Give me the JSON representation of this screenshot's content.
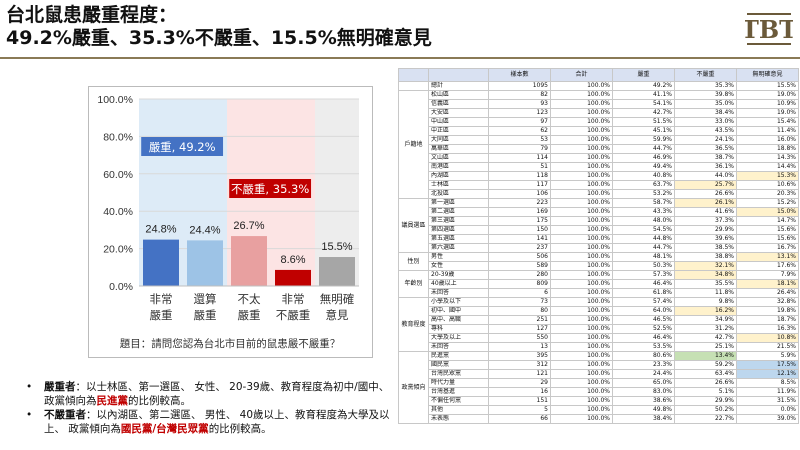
{
  "header": {
    "line1": "台北鼠患嚴重程度：",
    "line2": "49.2%嚴重、35.3%不嚴重、15.5%無明確意見",
    "logo_text": "TBT"
  },
  "colors": {
    "accent_rule": "#8a7a56",
    "blue": "#4472c4",
    "lightblue": "#9dc3e6",
    "pink": "#e8a0a0",
    "red": "#c00000",
    "gray": "#a6a6a6"
  },
  "chart_data": {
    "type": "bar",
    "categories": [
      [
        "非常",
        "嚴重"
      ],
      [
        "還算",
        "嚴重"
      ],
      [
        "不太",
        "嚴重"
      ],
      [
        "非常",
        "不嚴重"
      ],
      [
        "無明確",
        "意見"
      ]
    ],
    "values": [
      24.8,
      24.4,
      26.7,
      8.6,
      15.5
    ],
    "value_labels": [
      "24.8%",
      "24.4%",
      "26.7%",
      "8.6%",
      "15.5%"
    ],
    "bar_colors": [
      "#4472c4",
      "#9dc3e6",
      "#e8a0a0",
      "#c00000",
      "#a6a6a6"
    ],
    "y_ticks": [
      "0.0%",
      "20.0%",
      "40.0%",
      "60.0%",
      "80.0%",
      "100.0%"
    ],
    "ylim": [
      0,
      100
    ],
    "groups": [
      {
        "label": "嚴重, 49.2%",
        "from": 0,
        "to": 1,
        "bg": "#ddebf7",
        "box": "#4472c4"
      },
      {
        "label": "不嚴重, 35.3%",
        "from": 2,
        "to": 3,
        "bg": "#fce4e4",
        "box": "#c00000"
      },
      {
        "label": "",
        "from": 4,
        "to": 4,
        "bg": "#ededed",
        "box": "#a6a6a6"
      }
    ],
    "question": "題目：請問您認為台北市目前的鼠患嚴不嚴重？"
  },
  "notes": [
    {
      "heading": "嚴重者",
      "sep": "：",
      "text": "以士林區、第一選區、 女性、 20-39歲、教育程度為初中/國中、 政黨傾向為",
      "highlight": "民進黨",
      "tail": "的比例較高。"
    },
    {
      "heading": "不嚴重者",
      "sep": "：",
      "text": "以內湖區、第二選區、 男性、 40歲以上、教育程度為大學及以上、 政黨傾向為",
      "highlight": "國民黨/台灣民眾黨",
      "tail": "的比例較高。"
    }
  ],
  "table": {
    "headers": [
      "",
      "",
      "樣本數",
      "合計",
      "嚴重",
      "不嚴重",
      "無明確意見"
    ],
    "total": {
      "label": "總計",
      "values": [
        "1095",
        "100.0%",
        "49.2%",
        "35.3%",
        "15.5%"
      ]
    },
    "groups": [
      {
        "name": "戶籍地",
        "rows": [
          [
            "松山區",
            "82",
            "100.0%",
            "41.1%",
            "39.8%",
            "19.0%"
          ],
          [
            "信義區",
            "93",
            "100.0%",
            "54.1%",
            "35.0%",
            "10.9%"
          ],
          [
            "大安區",
            "123",
            "100.0%",
            "42.7%",
            "38.4%",
            "19.0%"
          ],
          [
            "中山區",
            "97",
            "100.0%",
            "51.5%",
            "33.0%",
            "15.4%"
          ],
          [
            "中正區",
            "62",
            "100.0%",
            "45.1%",
            "43.5%",
            "11.4%"
          ],
          [
            "大同區",
            "53",
            "100.0%",
            "59.9%",
            "24.1%",
            "16.0%"
          ],
          [
            "萬華區",
            "79",
            "100.0%",
            "44.7%",
            "36.5%",
            "18.8%"
          ],
          [
            "文山區",
            "114",
            "100.0%",
            "46.9%",
            "38.7%",
            "14.3%"
          ],
          [
            "南港區",
            "51",
            "100.0%",
            "49.4%",
            "36.1%",
            "14.4%"
          ],
          [
            "內湖區",
            "118",
            "100.0%",
            "40.8%",
            "44.0%",
            "15.3%"
          ],
          [
            "士林區",
            "117",
            "100.0%",
            "63.7%",
            "25.7%",
            "10.6%"
          ],
          [
            "北投區",
            "106",
            "100.0%",
            "53.2%",
            "26.6%",
            "20.3%"
          ]
        ]
      },
      {
        "name": "議員選區",
        "rows": [
          [
            "第一選區",
            "223",
            "100.0%",
            "58.7%",
            "26.1%",
            "15.2%"
          ],
          [
            "第二選區",
            "169",
            "100.0%",
            "43.3%",
            "41.6%",
            "15.0%"
          ],
          [
            "第三選區",
            "175",
            "100.0%",
            "48.0%",
            "37.3%",
            "14.7%"
          ],
          [
            "第四選區",
            "150",
            "100.0%",
            "54.5%",
            "29.9%",
            "15.6%"
          ],
          [
            "第五選區",
            "141",
            "100.0%",
            "44.8%",
            "39.6%",
            "15.6%"
          ],
          [
            "第六選區",
            "237",
            "100.0%",
            "44.7%",
            "38.5%",
            "16.7%"
          ]
        ]
      },
      {
        "name": "性別",
        "rows": [
          [
            "男性",
            "506",
            "100.0%",
            "48.1%",
            "38.8%",
            "13.1%"
          ],
          [
            "女性",
            "589",
            "100.0%",
            "50.3%",
            "32.1%",
            "17.6%"
          ]
        ]
      },
      {
        "name": "年齡別",
        "rows": [
          [
            "20-39歲",
            "280",
            "100.0%",
            "57.3%",
            "34.8%",
            "7.9%"
          ],
          [
            "40歲以上",
            "809",
            "100.0%",
            "46.4%",
            "35.5%",
            "18.1%"
          ],
          [
            "未回答",
            "6",
            "100.0%",
            "61.8%",
            "11.8%",
            "26.4%"
          ]
        ]
      },
      {
        "name": "教育程度",
        "rows": [
          [
            "小學及以下",
            "73",
            "100.0%",
            "57.4%",
            "9.8%",
            "32.8%"
          ],
          [
            "初中、國中",
            "80",
            "100.0%",
            "64.0%",
            "16.2%",
            "19.8%"
          ],
          [
            "高中、高職",
            "251",
            "100.0%",
            "46.5%",
            "34.9%",
            "18.7%"
          ],
          [
            "專科",
            "127",
            "100.0%",
            "52.5%",
            "31.2%",
            "16.3%"
          ],
          [
            "大學及以上",
            "550",
            "100.0%",
            "46.4%",
            "42.7%",
            "10.8%"
          ],
          [
            "未回答",
            "13",
            "100.0%",
            "53.5%",
            "25.1%",
            "21.5%"
          ]
        ]
      },
      {
        "name": "政黨傾向",
        "rows": [
          [
            "民進黨",
            "395",
            "100.0%",
            "80.6%",
            "13.4%",
            "5.9%"
          ],
          [
            "國民黨",
            "312",
            "100.0%",
            "23.3%",
            "59.2%",
            "17.5%"
          ],
          [
            "台灣民眾黨",
            "121",
            "100.0%",
            "24.4%",
            "63.4%",
            "12.1%"
          ],
          [
            "時代力量",
            "29",
            "100.0%",
            "65.0%",
            "26.6%",
            "8.5%"
          ],
          [
            "台灣基進",
            "16",
            "100.0%",
            "83.0%",
            "5.1%",
            "11.9%"
          ],
          [
            "不偏任何黨",
            "151",
            "100.0%",
            "38.6%",
            "29.9%",
            "31.5%"
          ],
          [
            "其他",
            "5",
            "100.0%",
            "49.8%",
            "50.2%",
            "0.0%"
          ],
          [
            "未表態",
            "66",
            "100.0%",
            "38.4%",
            "22.7%",
            "39.0%"
          ]
        ]
      }
    ],
    "highlights_yellow": [
      "士林區:3",
      "內湖區:4",
      "第一選區:3",
      "第二選區:4",
      "男性:4",
      "女性:3",
      "20-39歲:3",
      "40歲以上:4",
      "初中、國中:3",
      "大學及以上:4"
    ],
    "highlights_green": [
      "民進黨:3"
    ],
    "highlights_blue": [
      "國民黨:4",
      "台灣民眾黨:4"
    ]
  }
}
